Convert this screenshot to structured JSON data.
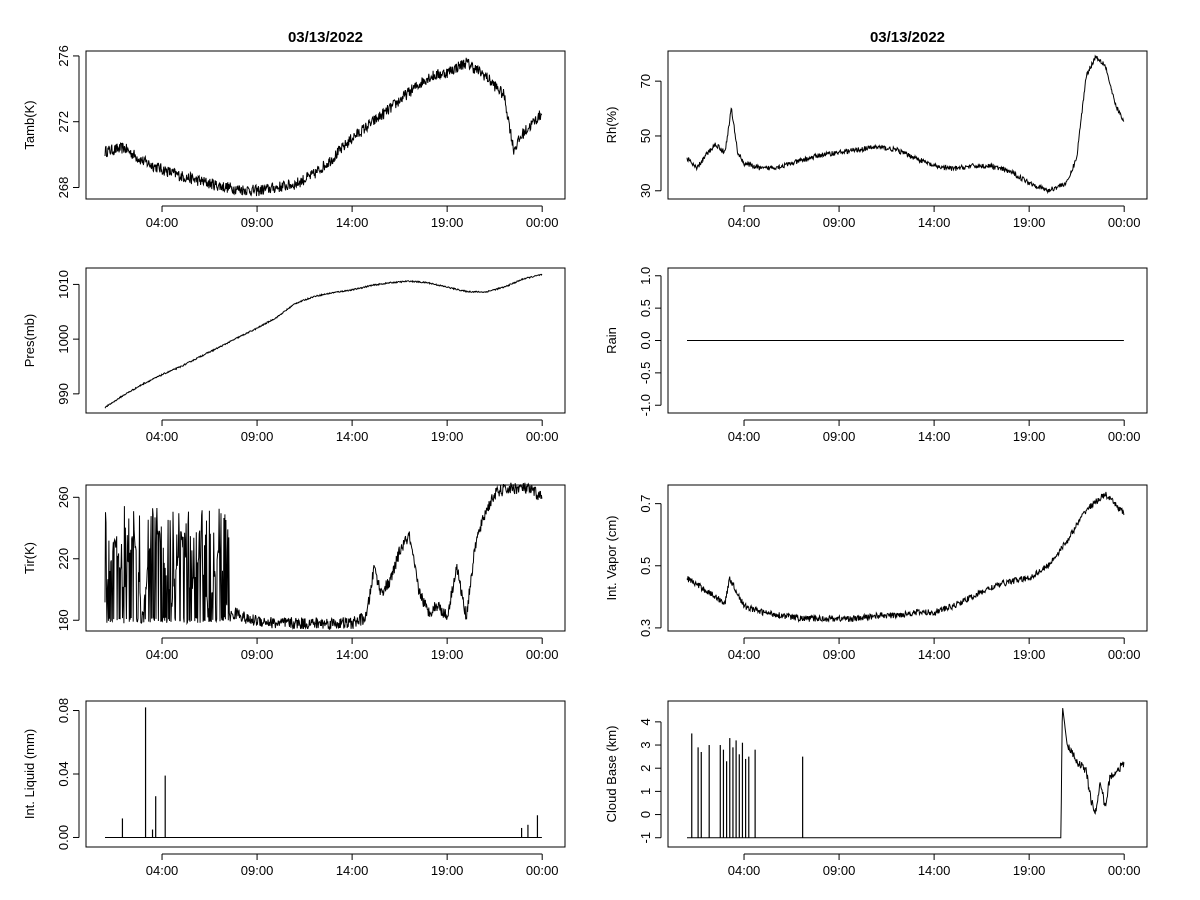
{
  "chart_data": [
    {
      "type": "line",
      "title": "03/13/2022",
      "ylabel": "Tamb(K)",
      "xlabel": "",
      "ylim": [
        267.3,
        276.3
      ],
      "yticks": [
        "268",
        "272",
        "276"
      ],
      "ytick_values": [
        268,
        272,
        276
      ],
      "x": [
        "01:00",
        "02:00",
        "03:00",
        "04:00",
        "05:00",
        "06:00",
        "07:00",
        "08:00",
        "09:00",
        "10:00",
        "11:00",
        "12:00",
        "13:00",
        "14:00",
        "15:00",
        "16:00",
        "17:00",
        "18:00",
        "19:00",
        "20:00",
        "21:00",
        "22:00",
        "22:30",
        "23:00",
        "23:59"
      ],
      "values": [
        270.2,
        270.4,
        269.6,
        269.1,
        268.7,
        268.4,
        268.1,
        267.9,
        267.8,
        268.0,
        268.2,
        268.8,
        269.8,
        271.0,
        271.9,
        272.8,
        273.8,
        274.7,
        275.0,
        275.6,
        274.8,
        273.6,
        270.3,
        271.3,
        272.5
      ],
      "noise": 0.35
    },
    {
      "type": "line",
      "title": "",
      "ylabel": "Pres(mb)",
      "xlabel": "",
      "ylim": [
        986.5,
        1013
      ],
      "yticks": [
        "990",
        "1000",
        "1010"
      ],
      "ytick_values": [
        990,
        1000,
        1010
      ],
      "x": [
        "01:00",
        "02:00",
        "03:00",
        "04:00",
        "05:00",
        "06:00",
        "07:00",
        "08:00",
        "09:00",
        "10:00",
        "11:00",
        "12:00",
        "13:00",
        "14:00",
        "15:00",
        "16:00",
        "17:00",
        "18:00",
        "19:00",
        "20:00",
        "21:00",
        "22:00",
        "23:00",
        "23:59"
      ],
      "values": [
        987.5,
        989.8,
        991.8,
        993.5,
        995.0,
        996.8,
        998.5,
        1000.3,
        1002.0,
        1003.9,
        1006.5,
        1007.8,
        1008.5,
        1009.0,
        1009.8,
        1010.3,
        1010.6,
        1010.3,
        1009.5,
        1008.7,
        1008.6,
        1009.5,
        1011.0,
        1011.8
      ],
      "noise": 0.12
    },
    {
      "type": "line",
      "title": "",
      "ylabel": "Tir(K)",
      "xlabel": "",
      "ylim": [
        173,
        268
      ],
      "yticks": [
        "180",
        "220",
        "260"
      ],
      "ytick_values": [
        180,
        220,
        260
      ],
      "x": [
        "01:00",
        "01:30",
        "02:00",
        "02:30",
        "03:00",
        "03:30",
        "04:00",
        "04:30",
        "05:00",
        "05:30",
        "06:00",
        "06:30",
        "07:00",
        "07:30",
        "08:00",
        "08:30",
        "09:00",
        "10:00",
        "11:00",
        "12:00",
        "13:00",
        "14:00",
        "14:45",
        "15:10",
        "15:30",
        "16:00",
        "16:30",
        "17:00",
        "17:30",
        "18:00",
        "18:30",
        "19:00",
        "19:30",
        "20:00",
        "20:30",
        "21:00",
        "21:30",
        "22:00",
        "22:30",
        "23:00",
        "23:30",
        "23:59"
      ],
      "values": [
        190,
        235,
        200,
        240,
        180,
        250,
        230,
        190,
        235,
        200,
        220,
        185,
        230,
        182,
        185,
        180,
        180,
        178,
        178,
        178,
        178,
        178,
        182,
        215,
        198,
        205,
        225,
        235,
        200,
        185,
        190,
        182,
        215,
        182,
        230,
        250,
        262,
        265,
        266,
        266,
        264,
        260
      ],
      "noise": 4.0,
      "spiky": [
        0,
        7.6
      ]
    },
    {
      "type": "line",
      "title": "",
      "ylabel": "Int. Liquid (mm)",
      "xlabel": "",
      "ylim": [
        -0.006,
        0.086
      ],
      "yticks": [
        "0.00",
        "0.04",
        "0.08"
      ],
      "ytick_values": [
        0,
        0.04,
        0.08
      ],
      "x": [
        "01:00",
        "23:59"
      ],
      "values": [
        0,
        0
      ],
      "spikes": [
        {
          "t": "01:55",
          "v": 0.012
        },
        {
          "t": "03:08",
          "v": 0.082
        },
        {
          "t": "03:30",
          "v": 0.005
        },
        {
          "t": "03:40",
          "v": 0.026
        },
        {
          "t": "04:10",
          "v": 0.039
        },
        {
          "t": "22:55",
          "v": 0.006
        },
        {
          "t": "23:15",
          "v": 0.008
        },
        {
          "t": "23:45",
          "v": 0.014
        }
      ]
    },
    {
      "type": "line",
      "title": "03/13/2022",
      "ylabel": "Rh(%)",
      "xlabel": "",
      "ylim": [
        27,
        81
      ],
      "yticks": [
        "30",
        "50",
        "70"
      ],
      "ytick_values": [
        30,
        50,
        70
      ],
      "x": [
        "01:00",
        "01:30",
        "02:00",
        "02:30",
        "03:00",
        "03:20",
        "03:40",
        "04:00",
        "05:00",
        "06:00",
        "07:00",
        "08:00",
        "09:00",
        "10:00",
        "11:00",
        "12:00",
        "13:00",
        "14:00",
        "15:00",
        "16:00",
        "17:00",
        "18:00",
        "19:00",
        "20:00",
        "21:00",
        "21:30",
        "22:00",
        "22:30",
        "23:00",
        "23:30",
        "23:59"
      ],
      "values": [
        42,
        38,
        43,
        47,
        44,
        60,
        44,
        40,
        38,
        39,
        41,
        43,
        44,
        45,
        46,
        45,
        42,
        39,
        38,
        39,
        39,
        37,
        33,
        30,
        33,
        42,
        72,
        79,
        76,
        62,
        55
      ],
      "noise": 0.9
    },
    {
      "type": "line",
      "title": "",
      "ylabel": "Rain",
      "xlabel": "",
      "ylim": [
        -1.12,
        1.12
      ],
      "yticks": [
        "-1.0",
        "-0.5",
        "0.0",
        "0.5",
        "1.0"
      ],
      "ytick_values": [
        -1,
        -0.5,
        0,
        0.5,
        1
      ],
      "x": [
        "01:00",
        "23:59"
      ],
      "values": [
        0,
        0
      ]
    },
    {
      "type": "line",
      "title": "",
      "ylabel": "Int. Vapor (cm)",
      "xlabel": "",
      "ylim": [
        0.29,
        0.76
      ],
      "yticks": [
        "0.3",
        "0.5",
        "0.7"
      ],
      "ytick_values": [
        0.3,
        0.5,
        0.7
      ],
      "x": [
        "01:00",
        "02:00",
        "03:00",
        "03:15",
        "04:00",
        "05:00",
        "06:00",
        "07:00",
        "08:00",
        "09:00",
        "10:00",
        "11:00",
        "12:00",
        "13:00",
        "14:00",
        "15:00",
        "16:00",
        "17:00",
        "18:00",
        "19:00",
        "20:00",
        "21:00",
        "22:00",
        "23:00",
        "23:59"
      ],
      "values": [
        0.46,
        0.42,
        0.38,
        0.46,
        0.37,
        0.35,
        0.34,
        0.33,
        0.33,
        0.33,
        0.33,
        0.34,
        0.34,
        0.35,
        0.35,
        0.37,
        0.4,
        0.43,
        0.45,
        0.46,
        0.5,
        0.58,
        0.68,
        0.73,
        0.67
      ],
      "noise": 0.01
    },
    {
      "type": "line",
      "title": "",
      "ylabel": "Cloud Base (km)",
      "xlabel": "",
      "ylim": [
        -1.4,
        4.9
      ],
      "yticks": [
        "-1",
        "0",
        "1",
        "2",
        "3",
        "4"
      ],
      "ytick_values": [
        -1,
        0,
        1,
        2,
        3,
        4
      ],
      "x": [
        "01:00",
        "20:40",
        "20:45",
        "21:00",
        "21:30",
        "22:00",
        "22:15",
        "22:30",
        "22:45",
        "23:00",
        "23:15",
        "23:30",
        "23:59"
      ],
      "values": [
        -1,
        -1,
        4.7,
        3.0,
        2.3,
        1.9,
        0.6,
        0.1,
        1.4,
        0.3,
        1.6,
        1.8,
        2.2
      ],
      "noise": 0.18,
      "noise_from": "21:00",
      "spikes": [
        {
          "t": "01:15",
          "v": 3.5
        },
        {
          "t": "01:35",
          "v": 2.9
        },
        {
          "t": "01:45",
          "v": 2.7
        },
        {
          "t": "02:10",
          "v": 3.0
        },
        {
          "t": "02:45",
          "v": 3.0
        },
        {
          "t": "02:55",
          "v": 2.8
        },
        {
          "t": "03:05",
          "v": 2.3
        },
        {
          "t": "03:15",
          "v": 3.3
        },
        {
          "t": "03:25",
          "v": 2.9
        },
        {
          "t": "03:35",
          "v": 3.2
        },
        {
          "t": "03:45",
          "v": 2.6
        },
        {
          "t": "03:55",
          "v": 3.1
        },
        {
          "t": "04:05",
          "v": 2.4
        },
        {
          "t": "04:15",
          "v": 2.5
        },
        {
          "t": "04:35",
          "v": 2.8
        },
        {
          "t": "07:05",
          "v": 2.5
        }
      ]
    }
  ],
  "xticks": [
    "04:00",
    "09:00",
    "14:00",
    "19:00",
    "00:00"
  ]
}
